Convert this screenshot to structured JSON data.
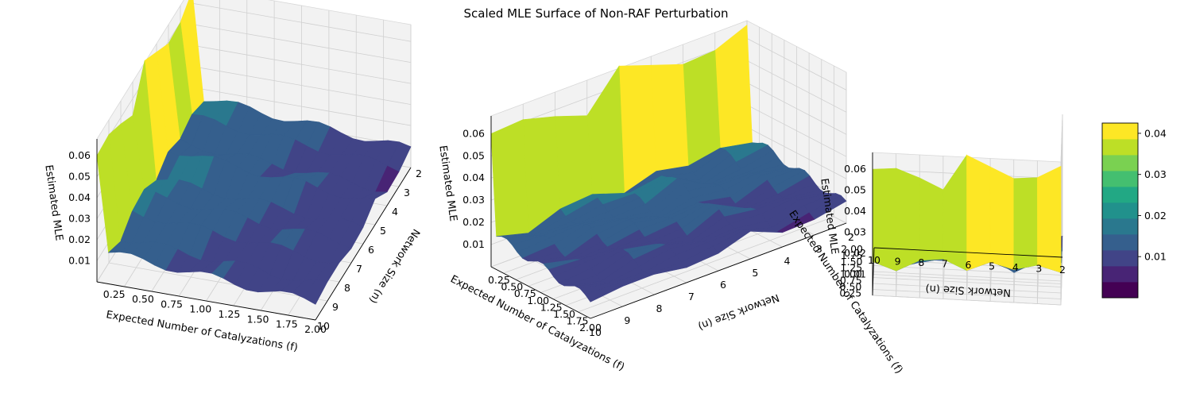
{
  "figure": {
    "title": "Scaled MLE Surface of Non-RAF Perturbation"
  },
  "chart_data": [
    {
      "type": "surface",
      "view": "front-left",
      "xlabel": "Expected Number of Catalyzations (f)",
      "ylabel": "Network Size (n)",
      "zlabel": "Estimated MLE",
      "x_ticks": [
        "0.25",
        "0.50",
        "0.75",
        "1.00",
        "1.25",
        "1.50",
        "1.75",
        "2.00"
      ],
      "y_ticks": [
        "10",
        "9",
        "8",
        "7",
        "6",
        "5",
        "4",
        "3",
        "2"
      ],
      "z_ticks": [
        "0.01",
        "0.02",
        "0.03",
        "0.04",
        "0.05",
        "0.06"
      ],
      "xlim": [
        0.1,
        2.0
      ],
      "ylim": [
        2,
        10
      ],
      "zlim": [
        0.0,
        0.068
      ]
    },
    {
      "type": "surface",
      "view": "front-right",
      "xlabel": "Expected Number of Catalyzations (f)",
      "ylabel": "Network Size (n)",
      "zlabel": "Estimated MLE",
      "x_ticks": [
        "0.25",
        "0.50",
        "0.75",
        "1.00",
        "1.25",
        "1.50",
        "1.75",
        "2.00"
      ],
      "y_ticks": [
        "10",
        "9",
        "8",
        "7",
        "6",
        "5",
        "4",
        "3",
        "2"
      ],
      "z_ticks": [
        "0.01",
        "0.02",
        "0.03",
        "0.04",
        "0.05",
        "0.06"
      ],
      "xlim": [
        0.1,
        2.0
      ],
      "ylim": [
        2,
        10
      ],
      "zlim": [
        0.0,
        0.068
      ]
    },
    {
      "type": "surface",
      "view": "side",
      "xlabel": "Expected Number of Catalyzations (f)",
      "ylabel": "Network Size (n)",
      "zlabel": "Estimated MLE",
      "x_ticks": [
        "0.25",
        "0.50",
        "0.75",
        "1.00",
        "1.25",
        "1.50",
        "1.75",
        "2.00"
      ],
      "y_ticks": [
        "10",
        "9",
        "8",
        "7",
        "6",
        "5",
        "4",
        "3",
        "2"
      ],
      "z_ticks": [
        "0.01",
        "0.02",
        "0.03",
        "0.04",
        "0.05",
        "0.06"
      ],
      "xlim": [
        0.1,
        2.0
      ],
      "ylim": [
        2,
        10
      ],
      "zlim": [
        0.0,
        0.068
      ]
    }
  ],
  "surface_data": {
    "n_values": [
      2,
      3,
      4,
      5,
      6,
      7,
      8,
      9,
      10
    ],
    "f_values": [
      0.1,
      0.2,
      0.3,
      0.4,
      0.5,
      0.6,
      0.7,
      0.8,
      0.9,
      1.0,
      1.1,
      1.2,
      1.3,
      1.4,
      1.5,
      1.6,
      1.7,
      1.8,
      1.9,
      2.0
    ],
    "peak_at_f": 0.1,
    "peak_by_n": [
      0.066,
      0.06,
      0.059,
      0.064,
      0.069,
      0.052,
      0.057,
      0.061,
      0.06
    ],
    "low_by_n": [
      0.016,
      0.016,
      0.013,
      0.019,
      0.014,
      0.016,
      0.016,
      0.013,
      0.015
    ]
  },
  "colorbar": {
    "ticks": [
      "0.01",
      "0.02",
      "0.03",
      "0.04"
    ],
    "tick_values": [
      0.01,
      0.02,
      0.03,
      0.04
    ],
    "range": [
      0.0,
      0.0425
    ],
    "colors": [
      "#440154",
      "#482475",
      "#414487",
      "#355f8d",
      "#2a788e",
      "#21918c",
      "#22a884",
      "#44bf70",
      "#7ad151",
      "#bddf26",
      "#fde725"
    ]
  }
}
